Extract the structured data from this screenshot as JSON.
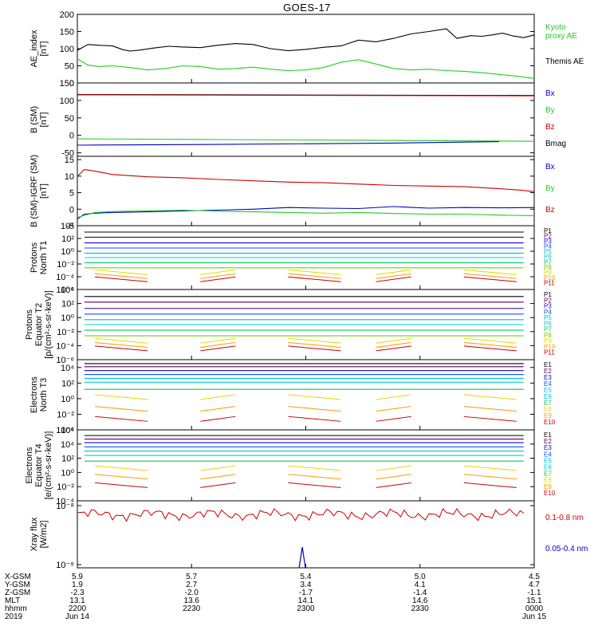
{
  "title": "GOES-17",
  "colors": {
    "black": "#000000",
    "green": "#22cc22",
    "blue": "#0000cc",
    "red": "#cc0000",
    "p_rainbow": [
      "#000000",
      "#5a005a",
      "#2200cc",
      "#0055ff",
      "#00bbdd",
      "#00cccc",
      "#00cc55",
      "#77cc00",
      "#dddd00",
      "#ff9900",
      "#cc0000"
    ],
    "e_rainbow": [
      "#000000",
      "#5a005a",
      "#2200cc",
      "#0055ff",
      "#00bbdd",
      "#00cccc",
      "#00cc55",
      "#dddd00",
      "#ff9900",
      "#cc0000"
    ]
  },
  "chart_data": [
    {
      "id": "ae",
      "type": "line",
      "ylabel": [
        "AE_index",
        "[nT]"
      ],
      "ylim": [
        0,
        200
      ],
      "yticks": [
        "0",
        "50",
        "100",
        "150",
        "200"
      ],
      "ytick_vals": [
        0,
        50,
        100,
        150,
        200
      ],
      "legend": [
        {
          "label": "Kyoto",
          "color": "#22cc22"
        },
        {
          "label": "proxy AE",
          "color": "#22cc22"
        },
        {
          "label": "Themis AE",
          "color": "#000000"
        }
      ],
      "series": [
        {
          "name": "Themis AE",
          "color": "#000000",
          "x": [
            0,
            3,
            6,
            10,
            13,
            15,
            18,
            22,
            26,
            30,
            35,
            40,
            45,
            50,
            55,
            60,
            65,
            70,
            75,
            80,
            85,
            90,
            95,
            100,
            105,
            108,
            112,
            115,
            118,
            121,
            124,
            127,
            130
          ],
          "y": [
            95,
            112,
            110,
            108,
            97,
            93,
            96,
            102,
            107,
            105,
            103,
            110,
            115,
            112,
            100,
            94,
            98,
            104,
            108,
            125,
            120,
            130,
            143,
            150,
            158,
            130,
            138,
            136,
            140,
            145,
            137,
            132,
            140
          ]
        },
        {
          "name": "Kyoto proxy AE",
          "color": "#22cc22",
          "x": [
            0,
            3,
            6,
            10,
            15,
            20,
            25,
            30,
            35,
            40,
            45,
            50,
            55,
            60,
            65,
            70,
            75,
            80,
            85,
            90,
            95,
            100,
            105,
            110,
            115,
            120,
            125,
            130
          ],
          "y": [
            70,
            52,
            48,
            50,
            45,
            38,
            42,
            50,
            48,
            40,
            42,
            46,
            40,
            36,
            38,
            45,
            60,
            68,
            55,
            42,
            38,
            40,
            36,
            34,
            30,
            25,
            20,
            13
          ]
        }
      ]
    },
    {
      "id": "bsm",
      "type": "line",
      "ylabel": [
        "B (SM)",
        "[nT]"
      ],
      "ylim": [
        -60,
        150
      ],
      "yticks": [
        "-50",
        "0",
        "50",
        "100",
        "150"
      ],
      "ytick_vals": [
        -50,
        0,
        50,
        100,
        150
      ],
      "legend": [
        {
          "label": "Bx",
          "color": "#0000cc"
        },
        {
          "label": "By",
          "color": "#22cc22"
        },
        {
          "label": "Bz",
          "color": "#cc0000"
        },
        {
          "label": "Bmag",
          "color": "#000000"
        }
      ],
      "series": [
        {
          "name": "Bmag",
          "color": "#000000",
          "x": [
            0,
            130
          ],
          "y": [
            117,
            114
          ]
        },
        {
          "name": "Bz",
          "color": "#cc0000",
          "x": [
            0,
            130
          ],
          "y": [
            116,
            113
          ]
        },
        {
          "name": "By",
          "color": "#22cc22",
          "x": [
            0,
            40,
            80,
            130
          ],
          "y": [
            -10,
            -12,
            -14,
            -17
          ]
        },
        {
          "name": "Bx",
          "color": "#0000cc",
          "x": [
            0,
            40,
            90,
            120
          ],
          "y": [
            -28,
            -26,
            -22,
            -18
          ]
        }
      ]
    },
    {
      "id": "bdiff",
      "type": "line",
      "ylabel": [
        "B (SM)-IGRF (SM)",
        "[nT]"
      ],
      "ylim": [
        -5,
        16
      ],
      "yticks": [
        "-5",
        "0",
        "5",
        "10",
        "15"
      ],
      "ytick_vals": [
        -5,
        0,
        5,
        10,
        15
      ],
      "legend": [
        {
          "label": "Bx",
          "color": "#0000cc"
        },
        {
          "label": "By",
          "color": "#22cc22"
        },
        {
          "label": "Bz",
          "color": "#cc0000"
        }
      ],
      "series": [
        {
          "name": "Bz",
          "color": "#cc0000",
          "x": [
            0,
            2,
            5,
            10,
            20,
            30,
            40,
            50,
            60,
            70,
            80,
            90,
            100,
            110,
            120,
            126,
            130
          ],
          "y": [
            10,
            12,
            11.5,
            10.5,
            9.8,
            9.5,
            9,
            8.6,
            8.2,
            8,
            7.6,
            7.2,
            7,
            6.8,
            6.2,
            5.8,
            5.3
          ]
        },
        {
          "name": "Bx",
          "color": "#0000cc",
          "x": [
            0,
            2,
            5,
            10,
            20,
            30,
            40,
            50,
            60,
            70,
            80,
            90,
            100,
            110,
            120,
            130
          ],
          "y": [
            -3,
            -1.5,
            -1.2,
            -1,
            -0.8,
            -0.5,
            -0.3,
            0,
            0.5,
            0.3,
            0.2,
            0.8,
            0.3,
            0.5,
            0.4,
            0.5
          ]
        },
        {
          "name": "By",
          "color": "#22cc22",
          "x": [
            0,
            5,
            10,
            20,
            30,
            40,
            50,
            60,
            70,
            80,
            90,
            100,
            110,
            120,
            130
          ],
          "y": [
            -2.5,
            -1,
            -0.7,
            -0.5,
            -0.3,
            -0.6,
            -0.8,
            -1,
            -1.2,
            -1,
            -1.3,
            -1.5,
            -1.5,
            -1.8,
            -2
          ]
        }
      ]
    },
    {
      "id": "p_north",
      "type": "log-flat-lines",
      "ylabel": [
        "Protons",
        "North T1"
      ],
      "log_range": [
        -6,
        4
      ],
      "yticks": [
        "10⁴",
        "10²",
        "10⁰",
        "10⁻²",
        "10⁻⁴",
        "10⁻⁶"
      ],
      "ytick_vals": [
        4,
        2,
        0,
        -2,
        -4,
        -6
      ],
      "legend_labels": [
        "P1",
        "P2",
        "P3",
        "P4",
        "P5",
        "P6",
        "P7",
        "P8",
        "P9",
        "P10",
        "P11"
      ],
      "levels": [
        3,
        2.2,
        1.3,
        0.5,
        -0.3,
        -1,
        -1.8,
        -2.6,
        -3.3,
        -3.9,
        -4.4
      ]
    },
    {
      "id": "p_equator",
      "type": "log-flat-lines",
      "ylabel": [
        "Protons",
        "Equator T2",
        "[p/(cm²-s-sr-keV)]"
      ],
      "log_range": [
        -6,
        4
      ],
      "yticks": [
        "10⁴",
        "10²",
        "10⁰",
        "10⁻²",
        "10⁻⁴",
        "10⁻⁶"
      ],
      "ytick_vals": [
        4,
        2,
        0,
        -2,
        -4,
        -6
      ],
      "legend_labels": [
        "P1",
        "P2",
        "P3",
        "P4",
        "P5",
        "P6",
        "P7",
        "P8",
        "P9",
        "P10",
        "P11"
      ],
      "levels": [
        3,
        2.2,
        1.3,
        0.5,
        -0.3,
        -1,
        -1.8,
        -2.6,
        -3.3,
        -3.9,
        -4.4
      ]
    },
    {
      "id": "e_north",
      "type": "log-flat-lines",
      "ylabel": [
        "Electrons",
        "North T3"
      ],
      "log_range": [
        -4,
        5
      ],
      "yticks": [
        "10⁴",
        "10²",
        "10⁰",
        "10⁻²",
        "10⁻⁴"
      ],
      "ytick_vals": [
        4,
        2,
        0,
        -2,
        -4
      ],
      "legend_labels": [
        "E1",
        "E2",
        "E3",
        "E4",
        "E5",
        "E6",
        "E7",
        "E8",
        "E9",
        "E10"
      ],
      "levels": [
        4.5,
        4.1,
        3.6,
        3.1,
        2.6,
        2.1,
        1.2,
        0.2,
        -1.3,
        -2.6
      ]
    },
    {
      "id": "e_equator",
      "type": "log-flat-lines",
      "ylabel": [
        "Electrons",
        "Equator T4",
        "[e/(cm²-s-sr-keV)]"
      ],
      "log_range": [
        -4,
        6
      ],
      "yticks": [
        "10⁶",
        "10⁴",
        "10²",
        "10⁰",
        "10⁻²",
        "10⁻⁴"
      ],
      "ytick_vals": [
        6,
        4,
        2,
        0,
        -2,
        -4
      ],
      "legend_labels": [
        "E1",
        "E2",
        "E3",
        "E4",
        "E5",
        "E6",
        "E7",
        "E8",
        "E9",
        "E10"
      ],
      "levels": [
        5.2,
        4.7,
        4.2,
        3.6,
        3.0,
        2.4,
        1.6,
        0.6,
        -0.6,
        -1.8
      ]
    },
    {
      "id": "xray",
      "type": "line",
      "ylabel": [
        "Xray flux",
        "[W/m2]"
      ],
      "yticks": [
        "10⁻⁸",
        "10⁻⁹"
      ],
      "ytick_vals": [
        1,
        0
      ],
      "legend": [
        {
          "label": "0.1-0.8 nm",
          "color": "#cc0000"
        },
        {
          "label": "0.05-0.4 nm",
          "color": "#0000cc"
        }
      ],
      "long_baseline": 0.85
    }
  ],
  "orbit_table": {
    "row_labels": [
      "X-GSM",
      "Y-GSM",
      "Z-GSM",
      "MLT",
      "hhmm",
      "2019"
    ],
    "columns": [
      [
        "5.9",
        "1.9",
        "-2.3",
        "13.1",
        "2200",
        "Jun 14"
      ],
      [
        "5.7",
        "2.7",
        "-2.0",
        "13.6",
        "2230",
        ""
      ],
      [
        "5.4",
        "3.4",
        "-1.7",
        "14.1",
        "2300",
        ""
      ],
      [
        "5.0",
        "4.1",
        "-1.4",
        "14.6",
        "2330",
        ""
      ],
      [
        "4.5",
        "4.7",
        "-1.1",
        "15.1",
        "0000",
        "Jun 15"
      ]
    ]
  }
}
